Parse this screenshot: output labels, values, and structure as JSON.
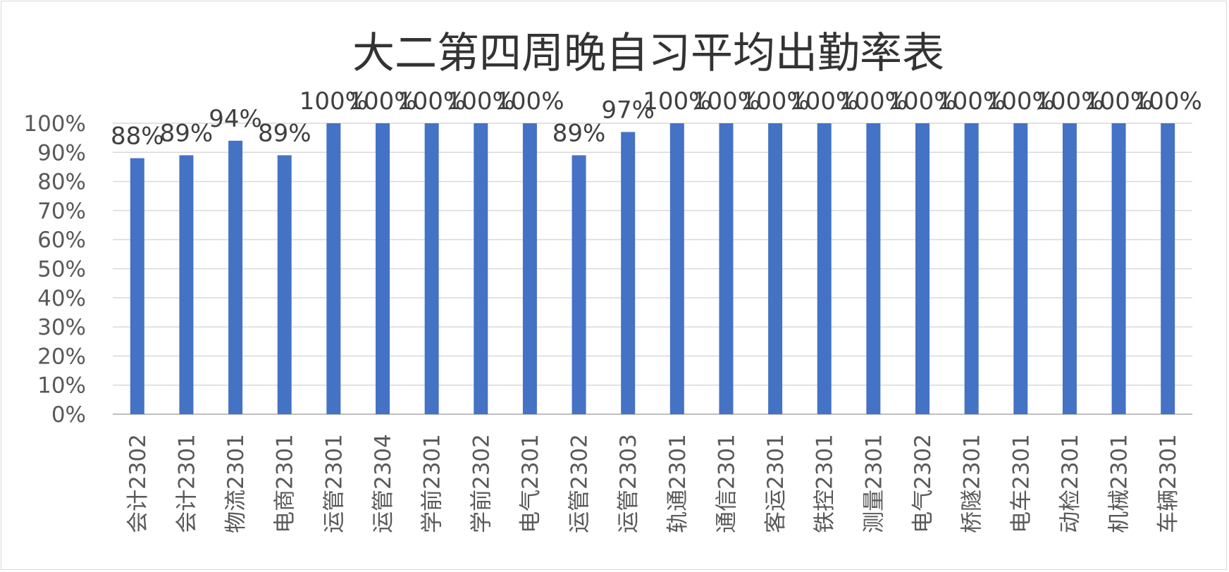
{
  "chart_data": {
    "type": "bar",
    "title": "大二第四周晚自习平均出勤率表",
    "xlabel": "",
    "ylabel": "",
    "ylim": [
      0,
      100
    ],
    "yticks": [
      "0%",
      "10%",
      "20%",
      "30%",
      "40%",
      "50%",
      "60%",
      "70%",
      "80%",
      "90%",
      "100%"
    ],
    "categories": [
      "会计2302",
      "会计2301",
      "物流2301",
      "电商2301",
      "运管2301",
      "运管2304",
      "学前2301",
      "学前2302",
      "电气2301",
      "运管2302",
      "运管2303",
      "轨通2301",
      "通信2301",
      "客运2301",
      "铁控2301",
      "测量2301",
      "电气2302",
      "桥隧2301",
      "电车2301",
      "动检2301",
      "机械2301",
      "车辆2301"
    ],
    "values": [
      88,
      89,
      94,
      89,
      100,
      100,
      100,
      100,
      100,
      89,
      97,
      100,
      100,
      100,
      100,
      100,
      100,
      100,
      100,
      100,
      100,
      100
    ],
    "data_labels": [
      "88%",
      "89%",
      "94%",
      "89%",
      "100%",
      "100%",
      "100%",
      "100%",
      "100%",
      "89%",
      "97%",
      "100%",
      "100%",
      "100%",
      "100%",
      "100%",
      "100%",
      "100%",
      "100%",
      "100%",
      "100%",
      "100%"
    ],
    "bar_color": "#4472C4",
    "gridlines": true,
    "legend": "none"
  }
}
